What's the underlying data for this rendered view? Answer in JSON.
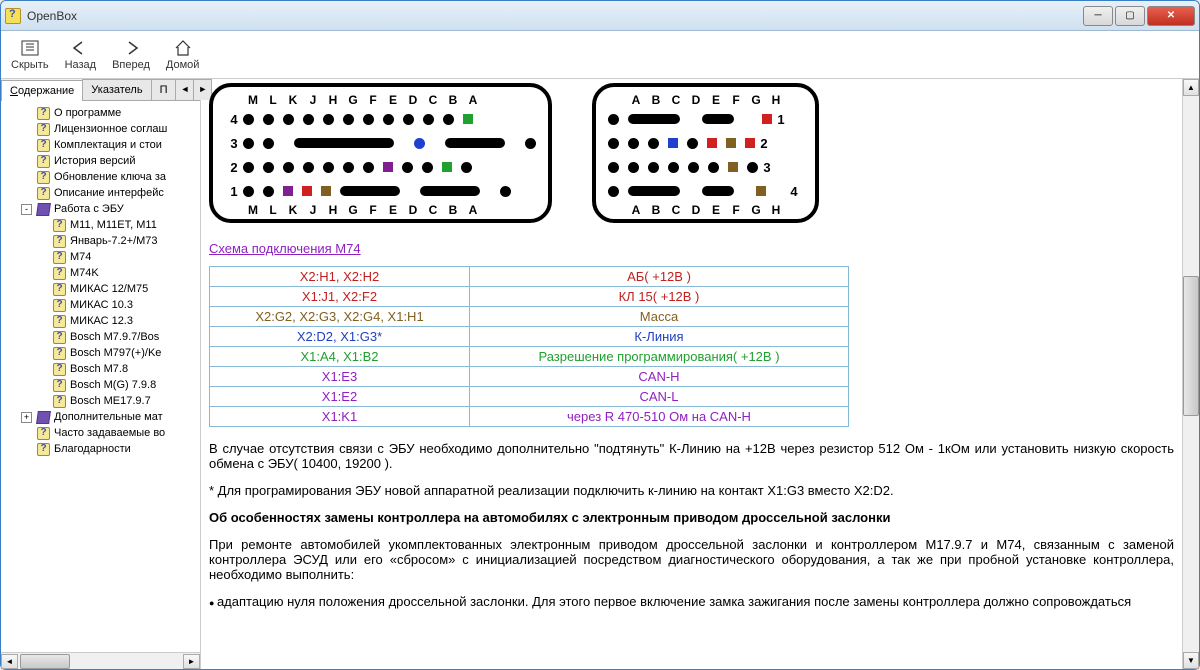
{
  "window": {
    "title": "OpenBox"
  },
  "toolbar": {
    "hide": "Скрыть",
    "back": "Назад",
    "forward": "Вперед",
    "home": "Домой"
  },
  "tabs": {
    "content": "Содержание",
    "index": "Указатель",
    "p": "П"
  },
  "tree": [
    {
      "lvl": 1,
      "icon": "help",
      "label": "О программе"
    },
    {
      "lvl": 1,
      "icon": "help",
      "label": "Лицензионное соглаш"
    },
    {
      "lvl": 1,
      "icon": "help",
      "label": "Комплектация и стои"
    },
    {
      "lvl": 1,
      "icon": "help",
      "label": "История версий"
    },
    {
      "lvl": 1,
      "icon": "help",
      "label": "Обновление ключа за"
    },
    {
      "lvl": 1,
      "icon": "help",
      "label": "Описание интерфейс"
    },
    {
      "lvl": 1,
      "icon": "book",
      "label": "Работа с ЭБУ",
      "exp": "-"
    },
    {
      "lvl": 2,
      "icon": "help",
      "label": "M11, M11ET, M11"
    },
    {
      "lvl": 2,
      "icon": "help",
      "label": "Январь-7.2+/M73"
    },
    {
      "lvl": 2,
      "icon": "help",
      "label": "M74"
    },
    {
      "lvl": 2,
      "icon": "help",
      "label": "M74K"
    },
    {
      "lvl": 2,
      "icon": "help",
      "label": "МИКАС 12/M75"
    },
    {
      "lvl": 2,
      "icon": "help",
      "label": "МИКАС 10.3"
    },
    {
      "lvl": 2,
      "icon": "help",
      "label": "МИКАС 12.3"
    },
    {
      "lvl": 2,
      "icon": "help",
      "label": "Bosch M7.9.7/Bos"
    },
    {
      "lvl": 2,
      "icon": "help",
      "label": "Bosch M797(+)/Ke"
    },
    {
      "lvl": 2,
      "icon": "help",
      "label": "Bosch M7.8"
    },
    {
      "lvl": 2,
      "icon": "help",
      "label": "Bosch M(G) 7.9.8"
    },
    {
      "lvl": 2,
      "icon": "help",
      "label": "Bosch ME17.9.7"
    },
    {
      "lvl": 1,
      "icon": "book",
      "label": "Дополнительные мат",
      "exp": "+"
    },
    {
      "lvl": 1,
      "icon": "help",
      "label": "Часто задаваемые во"
    },
    {
      "lvl": 1,
      "icon": "help",
      "label": "Благодарности"
    }
  ],
  "content": {
    "link": "Схема подключения M74",
    "table": [
      {
        "c1": "X2:H1, X2:H2",
        "c2": "АБ( +12В )",
        "color": "#c02020"
      },
      {
        "c1": "X1:J1, X2:F2",
        "c2": "КЛ 15( +12В )",
        "color": "#c02020"
      },
      {
        "c1": "X2:G2, X2:G3, X2:G4, X1:H1",
        "c2": "Масса",
        "color": "#806020"
      },
      {
        "c1": "X2:D2, X1:G3*",
        "c2": "К-Линия",
        "color": "#2040c0"
      },
      {
        "c1": "X1:A4, X1:B2",
        "c2": "Разрешение программирования( +12В )",
        "color": "#20a030"
      },
      {
        "c1": "X1:E3",
        "c2": "CAN-H",
        "color": "#9020c0"
      },
      {
        "c1": "X1:E2",
        "c2": "CAN-L",
        "color": "#9020c0"
      },
      {
        "c1": "X1:K1",
        "c2": "через R 470-510 Ом на CAN-H",
        "color": "#9020c0"
      }
    ],
    "para1": "В случае отсутствия связи с ЭБУ необходимо дополнительно \"подтянуть\" К-Линию на +12В через резистор 512 Ом - 1кОм или установить низкую скорость обмена с ЭБУ( 10400, 19200 ).",
    "para2": "* Для програмирования ЭБУ новой аппаратной реализации подключить к-линию на контакт X1:G3 вместо X2:D2.",
    "heading": "Об особенностях замены контроллера на автомобилях с электронным приводом дроссельной заслонки",
    "para3": "При ремонте автомобилей укомплектованных электронным приводом дроссельной заслонки и контроллером M17.9.7 и M74, связанным с заменой контроллера ЭСУД или его «сбросом» с инициализацией посредством диагностического оборудования, а так же при пробной установке контроллера, необходимо выполнить:",
    "para4": "адаптацию нуля положения дроссельной заслонки. Для этого первое включение замка зажигания после замены контроллера должно сопровождаться"
  },
  "colors": {
    "red": "#d02020",
    "green": "#20a030",
    "blue": "#2040d0",
    "brown": "#806020",
    "purple": "#802090",
    "black": "#000"
  },
  "conn1": {
    "lettersTop": [
      "M",
      "L",
      "K",
      "J",
      "H",
      "G",
      "F",
      "E",
      "D",
      "C",
      "B",
      "A"
    ],
    "lettersBot": [
      "M",
      "L",
      "K",
      "J",
      "H",
      "G",
      "F",
      "E",
      "D",
      "C",
      "B",
      "A"
    ],
    "rows": [
      "4",
      "3",
      "2",
      "1"
    ]
  },
  "conn2": {
    "lettersTop": [
      "A",
      "B",
      "C",
      "D",
      "E",
      "F",
      "G",
      "H"
    ],
    "lettersBot": [
      "A",
      "B",
      "C",
      "D",
      "E",
      "F",
      "G",
      "H"
    ],
    "rows": [
      "1",
      "2",
      "3",
      "4"
    ]
  }
}
